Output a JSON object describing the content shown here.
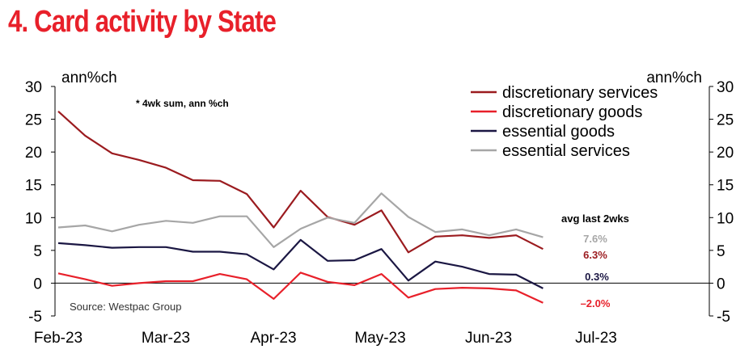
{
  "title": "4. Card activity by State",
  "chart_data": {
    "type": "line",
    "ylabel_left": "ann%ch",
    "ylabel_right": "ann%ch",
    "ylim": [
      -5,
      30
    ],
    "yticks": [
      30,
      25,
      20,
      15,
      10,
      5,
      0,
      -5
    ],
    "x_labels": [
      "Feb-23",
      "Mar-23",
      "Apr-23",
      "May-23",
      "Jun-23",
      "Jul-23"
    ],
    "note": "* 4wk sum, ann %ch",
    "source": "Source: Westpac Group",
    "annotation_header": "avg last 2wks",
    "series": [
      {
        "name": "discretionary services",
        "color": "#9b1b1f",
        "values": [
          26.2,
          22.5,
          19.8,
          18.8,
          17.6,
          15.7,
          15.6,
          13.6,
          8.5,
          14.1,
          10.1,
          8.9,
          11.1,
          4.7,
          7.1,
          7.3,
          6.9,
          7.3,
          5.2
        ]
      },
      {
        "name": "discretionary goods",
        "color": "#e8202a",
        "values": [
          1.5,
          0.6,
          -0.4,
          0.0,
          0.3,
          0.3,
          1.4,
          0.6,
          -2.4,
          1.6,
          0.2,
          -0.3,
          1.4,
          -2.2,
          -0.9,
          -0.7,
          -0.8,
          -1.1,
          -3.0
        ]
      },
      {
        "name": "essential goods",
        "color": "#1b1743",
        "values": [
          6.1,
          5.8,
          5.4,
          5.5,
          5.5,
          4.8,
          4.8,
          4.4,
          2.1,
          6.6,
          3.4,
          3.5,
          5.2,
          0.4,
          3.3,
          2.5,
          1.4,
          1.3,
          -0.8
        ]
      },
      {
        "name": "essential services",
        "color": "#a6a6a6",
        "values": [
          8.5,
          8.8,
          7.9,
          8.9,
          9.5,
          9.2,
          10.2,
          10.2,
          5.5,
          8.3,
          10.0,
          9.2,
          13.7,
          10.1,
          7.8,
          8.2,
          7.3,
          8.2,
          7.0
        ]
      }
    ],
    "end_labels": [
      {
        "text": "7.6%",
        "color": "#a6a6a6"
      },
      {
        "text": "6.3%",
        "color": "#9b1b1f"
      },
      {
        "text": "0.3%",
        "color": "#1b1743"
      },
      {
        "text": "–2.0%",
        "color": "#e8202a"
      }
    ],
    "grid": false,
    "legend_position": "top-right"
  }
}
